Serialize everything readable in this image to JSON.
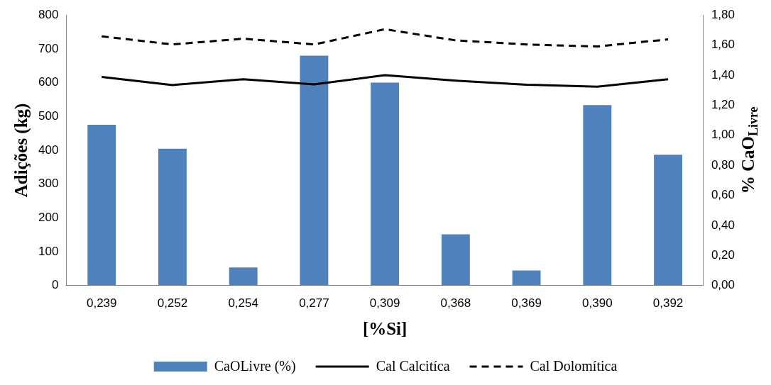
{
  "chart_data": {
    "type": "bar",
    "xlabel": "[%Si]",
    "ylabel": "Adições (kg)",
    "y2label": "% CaO$_{Livre}$",
    "categories": [
      "0,239",
      "0,252",
      "0,254",
      "0,277",
      "0,309",
      "0,368",
      "0,369",
      "0,390",
      "0,392"
    ],
    "series": [
      {
        "name": "CaOLivre (%)",
        "axis": "y2",
        "color": "#4f81bd",
        "values": [
          1.07,
          0.91,
          0.12,
          1.53,
          1.35,
          0.34,
          0.1,
          1.2,
          0.87
        ]
      },
      {
        "name": "Cal Calcitíca",
        "type": "line",
        "line_style": "solid",
        "color": "#000000",
        "values": [
          617,
          593,
          610,
          595,
          622,
          606,
          594,
          588,
          610
        ]
      },
      {
        "name": "Cal Dolomítica",
        "type": "line",
        "line_style": "dashed",
        "color": "#000000",
        "values": [
          737,
          713,
          730,
          713,
          758,
          725,
          713,
          707,
          728
        ]
      }
    ],
    "ylim": [
      0,
      800
    ],
    "yticks": [
      0,
      100,
      200,
      300,
      400,
      500,
      600,
      700,
      800
    ],
    "y2lim": [
      0,
      1.8
    ],
    "y2ticks": [
      {
        "value": 0,
        "label": "0,00"
      },
      {
        "value": 0.2,
        "label": "0,20"
      },
      {
        "value": 0.4,
        "label": "0,40"
      },
      {
        "value": 0.6,
        "label": "0,60"
      },
      {
        "value": 0.8,
        "label": "0,80"
      },
      {
        "value": 1,
        "label": "1,00"
      },
      {
        "value": 1.2,
        "label": "1,20"
      },
      {
        "value": 1.4,
        "label": "1,40"
      },
      {
        "value": 1.6,
        "label": "1,60"
      },
      {
        "value": 1.8,
        "label": "1,80"
      }
    ],
    "grid": false,
    "legend": "bottom",
    "marker": "none"
  }
}
